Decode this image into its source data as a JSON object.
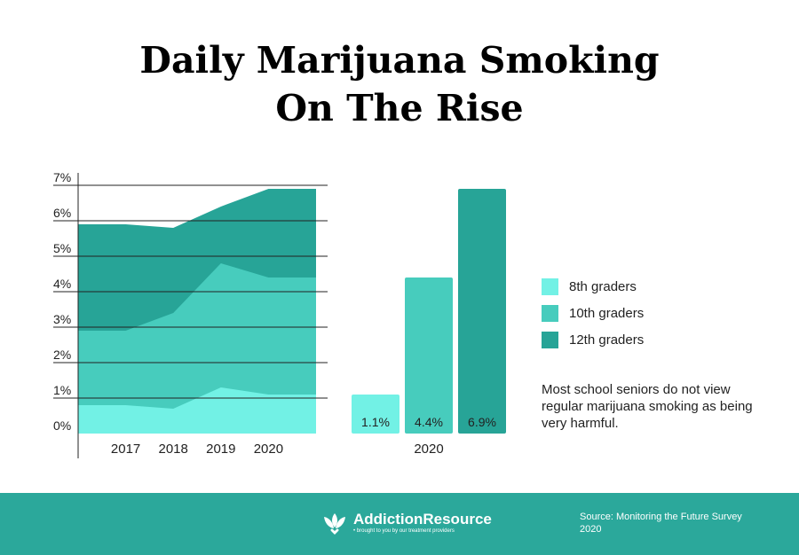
{
  "title_line1": "Daily Marijuana Smoking",
  "title_line2": "On The Rise",
  "colors": {
    "g8": "#72f1e5",
    "g10": "#47ccbd",
    "g12": "#27a497",
    "footer": "#2ba89b",
    "axis": "#222222"
  },
  "chart_data": [
    {
      "type": "area",
      "stacked": true,
      "x": [
        2016,
        2017,
        2018,
        2019,
        2020,
        2021
      ],
      "tick_labels": [
        "2017",
        "2018",
        "2019",
        "2020"
      ],
      "y_tick_labels": [
        "0%",
        "1%",
        "2%",
        "3%",
        "4%",
        "5%",
        "6%",
        "7%"
      ],
      "ylim": [
        0,
        7
      ],
      "grid": true,
      "series": [
        {
          "name": "8th graders",
          "values": [
            0.8,
            0.8,
            0.7,
            1.3,
            1.1,
            1.1
          ]
        },
        {
          "name": "10th graders",
          "values": [
            2.9,
            2.9,
            3.4,
            4.8,
            4.4,
            4.4
          ]
        },
        {
          "name": "12th graders",
          "values": [
            5.9,
            5.9,
            5.8,
            6.4,
            6.9,
            6.9
          ]
        }
      ]
    },
    {
      "type": "bar",
      "categories": [
        "2020"
      ],
      "series": [
        {
          "name": "8th graders",
          "value": 1.1,
          "label": "1.1%"
        },
        {
          "name": "10th graders",
          "value": 4.4,
          "label": "4.4%"
        },
        {
          "name": "12th graders",
          "value": 6.9,
          "label": "6.9%"
        }
      ],
      "ylim": [
        0,
        7
      ]
    }
  ],
  "legend": [
    {
      "label": "8th graders",
      "color_key": "g8"
    },
    {
      "label": "10th graders",
      "color_key": "g10"
    },
    {
      "label": "12th graders",
      "color_key": "g12"
    }
  ],
  "note": "Most school seniors do not view regular marijuana smoking as being very harmful.",
  "footer": {
    "brand_name": "AddictionResource",
    "brand_tagline": "brought to you by our treatment providers",
    "logo_icon": "lotus-heart-icon",
    "source": "Source: Monitoring the Future Survey 2020"
  }
}
